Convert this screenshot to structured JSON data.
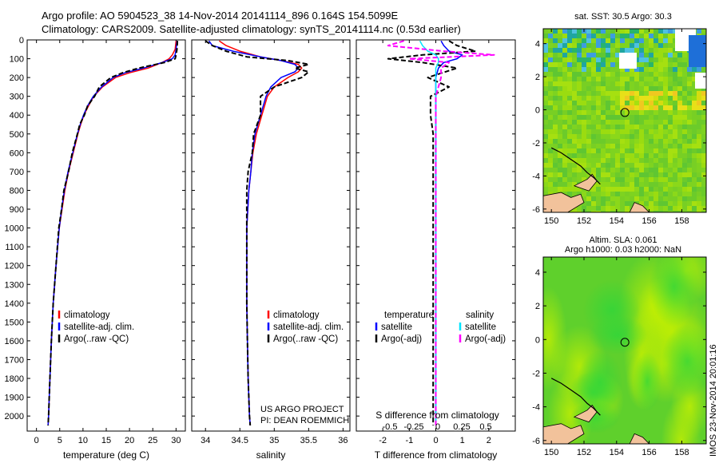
{
  "header": {
    "line1": "Argo profile: AO 5904523_38 14-Nov-2014 20141114_896 0.164S 154.5099E",
    "line2": "Climatology: CARS2009. Satellite-adjusted climatology: synTS_20141114.nc (0.53d earlier)"
  },
  "colors": {
    "climatology": "#ff0000",
    "satellite": "#0000ff",
    "argo": "#000000",
    "sal_satellite": "#00e5ff",
    "sal_argo": "#ff00ff",
    "land": "#f2c29b"
  },
  "credits": {
    "project": "US ARGO PROJECT",
    "pi": "PI: DEAN ROEMMICH"
  },
  "stamp": "IMOS 23-Nov-2014 20:01:16",
  "depth_ticks": [
    "0",
    "100",
    "200",
    "300",
    "400",
    "500",
    "600",
    "700",
    "800",
    "900",
    "1000",
    "1100",
    "1200",
    "1300",
    "1400",
    "1500",
    "1600",
    "1700",
    "1800",
    "1900",
    "2000"
  ],
  "chart_data": [
    {
      "type": "line",
      "panel": "temperature",
      "xlabel": "temperature (deg C)",
      "ylabel": "",
      "xlim": [
        -2,
        32
      ],
      "ylim": [
        2080,
        0
      ],
      "y_reversed": true,
      "xticks": [
        "0",
        "5",
        "10",
        "15",
        "20",
        "25",
        "30"
      ],
      "legend": [
        "climatology",
        "satellite-adj. clim.",
        "Argo(..raw -QC)"
      ],
      "legend_position": "lower-left",
      "y": [
        5,
        50,
        80,
        100,
        120,
        150,
        175,
        200,
        250,
        300,
        350,
        400,
        450,
        500,
        600,
        700,
        800,
        900,
        1000,
        1200,
        1400,
        1600,
        1800,
        2000,
        2050
      ],
      "series": [
        {
          "name": "climatology",
          "values": [
            30,
            29.8,
            29.2,
            28.5,
            27,
            24,
            20,
            17,
            14.2,
            12.3,
            11.2,
            10.2,
            9.5,
            8.9,
            7.9,
            6.9,
            6.1,
            5.5,
            4.9,
            4.2,
            3.6,
            3.2,
            2.9,
            2.6,
            2.5
          ]
        },
        {
          "name": "satellite-adj. clim.",
          "values": [
            30.2,
            30,
            29.8,
            29.2,
            27,
            23,
            19,
            16.5,
            14,
            12.2,
            11,
            10.1,
            9.4,
            8.8,
            7.8,
            6.8,
            6,
            5.4,
            4.9,
            4.2,
            3.6,
            3.2,
            2.9,
            2.6,
            2.5
          ]
        },
        {
          "name": "Argo(..raw -QC)",
          "values": [
            30.3,
            30.2,
            30,
            29.8,
            27.5,
            22,
            18.5,
            16,
            13.5,
            12.5,
            11,
            10.3,
            9.3,
            8.8,
            7.7,
            6.9,
            5.9,
            5.4,
            4.8,
            4.2,
            3.6,
            3.2,
            2.9,
            2.6,
            2.5
          ]
        }
      ]
    },
    {
      "type": "line",
      "panel": "salinity",
      "xlabel": "salinity",
      "ylabel": "",
      "xlim": [
        33.8,
        36.1
      ],
      "ylim": [
        2080,
        0
      ],
      "y_reversed": true,
      "xticks": [
        "34",
        "34.5",
        "35",
        "35.5",
        "36"
      ],
      "legend": [
        "climatology",
        "satellite-adj. clim.",
        "Argo(..raw -QC)"
      ],
      "legend_position": "lower-center",
      "y": [
        5,
        30,
        60,
        90,
        110,
        130,
        150,
        170,
        200,
        250,
        300,
        400,
        500,
        600,
        700,
        800,
        1000,
        1200,
        1400,
        1600,
        1800,
        2000,
        2050
      ],
      "series": [
        {
          "name": "climatology",
          "values": [
            34.2,
            34.3,
            34.5,
            34.8,
            35.1,
            35.35,
            35.4,
            35.35,
            35.2,
            35,
            34.9,
            34.82,
            34.74,
            34.69,
            34.66,
            34.63,
            34.6,
            34.6,
            34.6,
            34.61,
            34.62,
            34.64,
            34.65
          ]
        },
        {
          "name": "satellite-adj. clim.",
          "values": [
            34.05,
            34.1,
            34.4,
            34.8,
            35.1,
            35.3,
            35.35,
            35.3,
            35.1,
            34.95,
            34.88,
            34.8,
            34.72,
            34.68,
            34.66,
            34.63,
            34.6,
            34.6,
            34.6,
            34.61,
            34.62,
            34.64,
            34.65
          ]
        },
        {
          "name": "Argo(..raw -QC)",
          "values": [
            34.0,
            34.1,
            34.3,
            34.6,
            35.2,
            35.5,
            35.3,
            35.5,
            35.4,
            35,
            34.8,
            34.8,
            34.7,
            34.68,
            34.62,
            34.6,
            34.6,
            34.6,
            34.6,
            34.61,
            34.62,
            34.64,
            34.65
          ]
        }
      ]
    },
    {
      "type": "line",
      "panel": "difference",
      "xlabel": "T difference from climatology",
      "xlabel_top": "S difference from climatology",
      "ylabel": "",
      "xlim": [
        -3,
        3
      ],
      "ylim": [
        2080,
        0
      ],
      "y_reversed": true,
      "xticks": [
        "-2",
        "-1",
        "0",
        "1",
        "2"
      ],
      "xticks_salinity": [
        "-0.5",
        "-0.25",
        "0",
        "0.25",
        "0.5"
      ],
      "legend_headers": [
        "temperature",
        "salinity"
      ],
      "legend": [
        "satellite",
        "Argo(-adj)",
        "satellite",
        "Argo(-adj)"
      ],
      "legend_position": "lower-center",
      "y": [
        5,
        30,
        60,
        80,
        100,
        120,
        150,
        200,
        250,
        300,
        400,
        500,
        600,
        800,
        1000,
        1200,
        1400,
        1600,
        1800,
        2000,
        2050
      ],
      "series": [
        {
          "name": "satellite",
          "values": [
            0.2,
            0.3,
            0.5,
            1,
            0.8,
            0.3,
            0.1,
            0,
            0,
            0,
            0,
            0,
            0,
            0,
            0,
            0,
            0,
            0,
            0,
            0,
            0
          ]
        },
        {
          "name": "Argo(-adj)",
          "values": [
            0.5,
            0.8,
            1.5,
            -0.5,
            -1.8,
            -0.5,
            0.8,
            -0.3,
            0.5,
            -0.2,
            -0.2,
            -0.1,
            -0.1,
            -0.1,
            -0.1,
            -0.1,
            -0.1,
            -0.1,
            -0.1,
            -0.1,
            -0.1
          ]
        },
        {
          "name": "satellite",
          "values": [
            -0.6,
            -0.5,
            -0.3,
            0,
            0.1,
            0.1,
            0,
            0,
            0,
            0,
            0,
            0,
            0,
            0,
            0,
            0,
            0,
            0,
            0,
            0,
            0
          ]
        },
        {
          "name": "Argo(-adj)",
          "values": [
            -1.2,
            -1.8,
            0.3,
            2.2,
            -1,
            0.5,
            0.2,
            0.2,
            0.1,
            0,
            0,
            0,
            0,
            0,
            0,
            0,
            0,
            0,
            0,
            0,
            0
          ]
        }
      ]
    },
    {
      "type": "heatmap",
      "panel": "sst-map",
      "title": "sat. SST: 30.5 Argo: 30.3",
      "xlim": [
        149.5,
        159.5
      ],
      "ylim": [
        -6.2,
        4.9
      ],
      "xticks": [
        "150",
        "152",
        "154",
        "156",
        "158"
      ],
      "yticks": [
        "4",
        "2",
        "0",
        "-2",
        "-4",
        "-6"
      ],
      "marker": {
        "lon": 154.51,
        "lat": -0.164
      }
    },
    {
      "type": "heatmap",
      "panel": "sla-map",
      "title": "Altim. SLA: 0.061",
      "subtitle": "Argo h1000: 0.03 h2000: NaN",
      "xlim": [
        149.5,
        159.5
      ],
      "ylim": [
        -6.2,
        4.9
      ],
      "xticks": [
        "150",
        "152",
        "154",
        "156",
        "158"
      ],
      "yticks": [
        "4",
        "2",
        "0",
        "-2",
        "-4",
        "-6"
      ],
      "marker": {
        "lon": 154.51,
        "lat": -0.164
      }
    }
  ]
}
